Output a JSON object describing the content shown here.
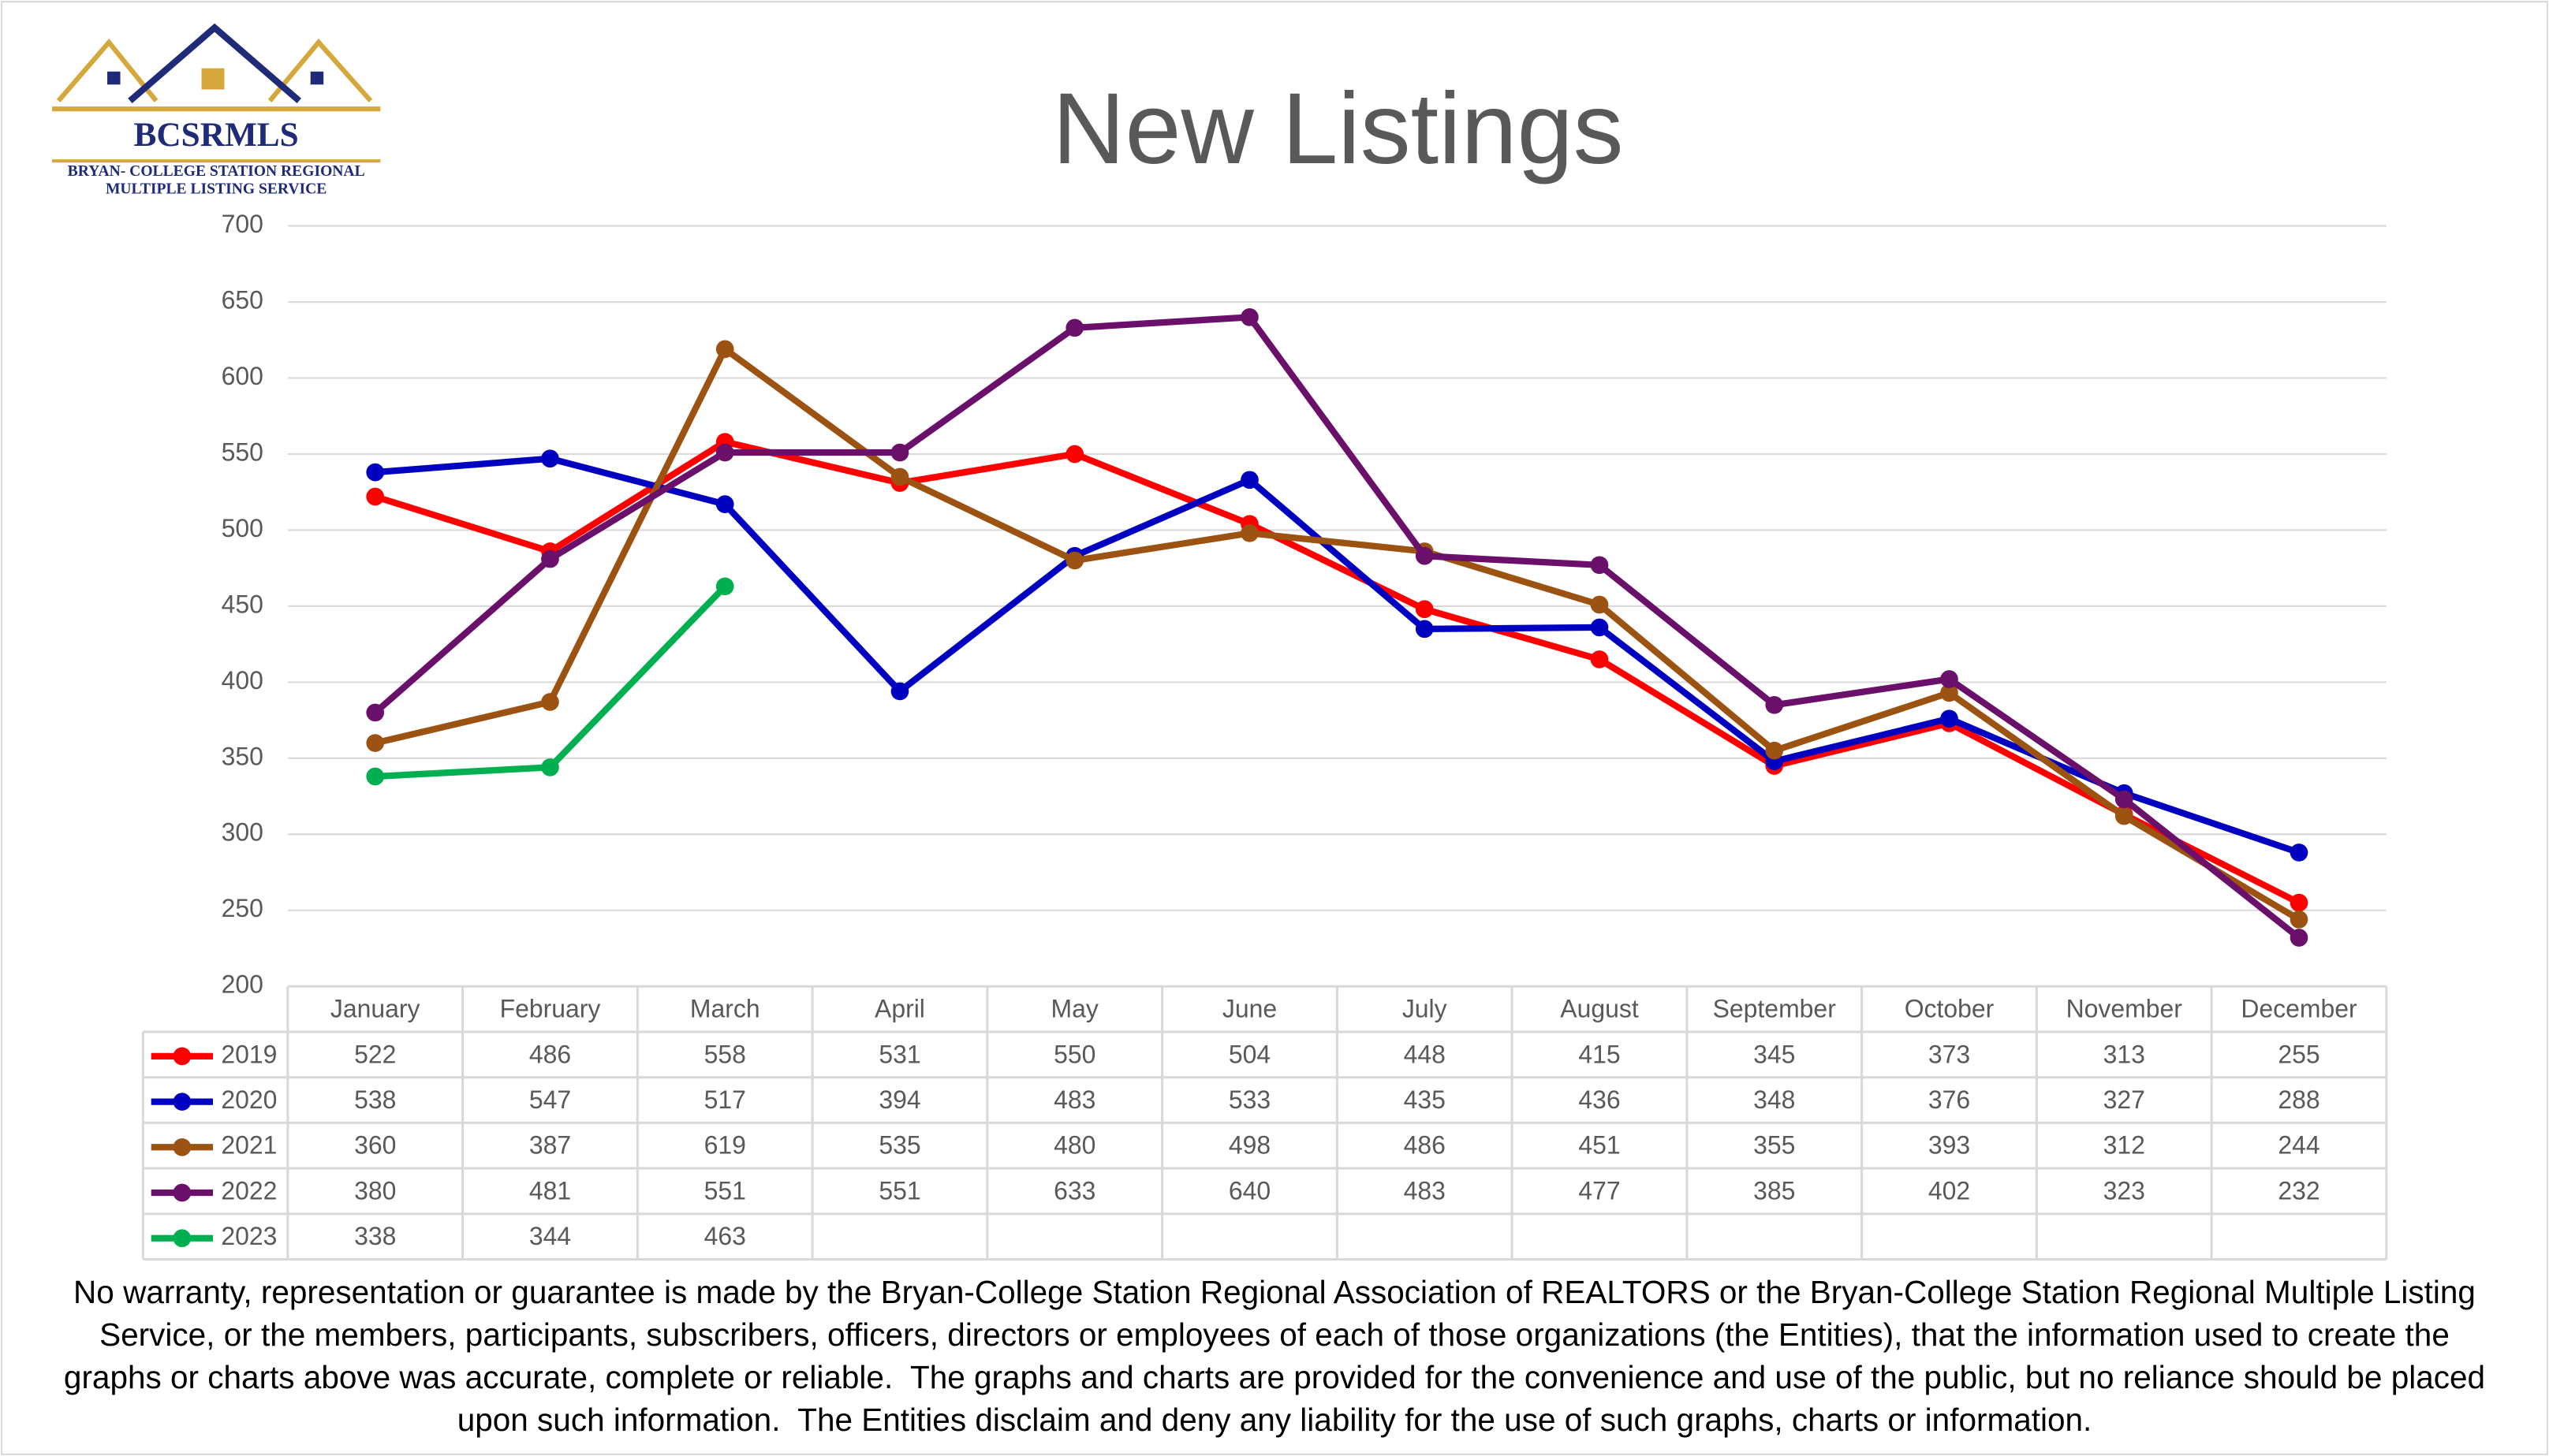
{
  "logo": {
    "name": "BCSRMLS",
    "line1": "BRYAN- COLLEGE STATION REGIONAL",
    "line2": "MULTIPLE LISTING SERVICE"
  },
  "chart_data": {
    "type": "line",
    "title": "New Listings",
    "categories": [
      "January",
      "February",
      "March",
      "April",
      "May",
      "June",
      "July",
      "August",
      "September",
      "October",
      "November",
      "December"
    ],
    "series": [
      {
        "name": "2019",
        "color": "#ff0000",
        "values": [
          522,
          486,
          558,
          531,
          550,
          504,
          448,
          415,
          345,
          373,
          313,
          255
        ]
      },
      {
        "name": "2020",
        "color": "#0000c0",
        "values": [
          538,
          547,
          517,
          394,
          483,
          533,
          435,
          436,
          348,
          376,
          327,
          288
        ]
      },
      {
        "name": "2021",
        "color": "#9c5211",
        "values": [
          360,
          387,
          619,
          535,
          480,
          498,
          486,
          451,
          355,
          393,
          312,
          244
        ]
      },
      {
        "name": "2022",
        "color": "#6a0f6a",
        "values": [
          380,
          481,
          551,
          551,
          633,
          640,
          483,
          477,
          385,
          402,
          323,
          232
        ]
      },
      {
        "name": "2023",
        "color": "#00b050",
        "values": [
          338,
          344,
          463,
          null,
          null,
          null,
          null,
          null,
          null,
          null,
          null,
          null
        ]
      }
    ],
    "ylim": [
      200,
      700
    ],
    "yticks": [
      200,
      250,
      300,
      350,
      400,
      450,
      500,
      550,
      600,
      650,
      700
    ],
    "grid": true
  },
  "footer": "No warranty, representation or guarantee is made by the Bryan-College Station Regional Association of REALTORS or the Bryan-College Station Regional Multiple Listing Service, or the members, participants, subscribers, officers, directors or employees of each of those organizations (the Entities), that the information used to create the graphs or charts above was accurate, complete or reliable.  The graphs and charts are provided for the convenience and use of the public, but no reliance should be placed upon such information.  The Entities disclaim and deny any liability for the use of such graphs, charts or information."
}
